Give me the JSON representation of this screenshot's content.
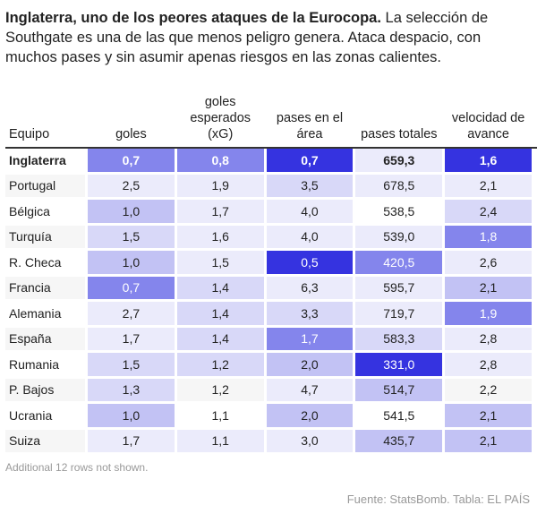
{
  "intro": {
    "title": "Inglaterra, uno de los peores ataques de la Eurocopa.",
    "text": " La selección de Southgate es una de las que menos peligro genera. Ataca despacio, con muchos pases y sin asumir apenas riesgos en las zonas calientes."
  },
  "chart_data": {
    "type": "table",
    "columns": [
      "Equipo",
      "goles",
      "goles esperados (xG)",
      "pases en el área",
      "pases totales",
      "velocidad de avance"
    ],
    "shade_colors": [
      "none",
      "#ebebfb",
      "#d8d8f8",
      "#c2c2f4",
      "#8485ec",
      "#3533e0"
    ],
    "rows": [
      {
        "team": "Inglaterra",
        "values": [
          "0,7",
          "0,8",
          "0,7",
          "659,3",
          "1,6"
        ],
        "shades": [
          4,
          4,
          5,
          1,
          5
        ],
        "highlight": true
      },
      {
        "team": "Portugal",
        "values": [
          "2,5",
          "1,9",
          "3,5",
          "678,5",
          "2,1"
        ],
        "shades": [
          1,
          1,
          2,
          1,
          1
        ]
      },
      {
        "team": "Bélgica",
        "values": [
          "1,0",
          "1,7",
          "4,0",
          "538,5",
          "2,4"
        ],
        "shades": [
          3,
          1,
          1,
          0,
          2
        ]
      },
      {
        "team": "Turquía",
        "values": [
          "1,5",
          "1,6",
          "4,0",
          "539,0",
          "1,8"
        ],
        "shades": [
          2,
          1,
          1,
          1,
          4
        ]
      },
      {
        "team": "R. Checa",
        "values": [
          "1,0",
          "1,5",
          "0,5",
          "420,5",
          "2,6"
        ],
        "shades": [
          3,
          1,
          5,
          4,
          1
        ]
      },
      {
        "team": "Francia",
        "values": [
          "0,7",
          "1,4",
          "6,3",
          "595,7",
          "2,1"
        ],
        "shades": [
          4,
          2,
          1,
          1,
          3
        ]
      },
      {
        "team": "Alemania",
        "values": [
          "2,7",
          "1,4",
          "3,3",
          "719,7",
          "1,9"
        ],
        "shades": [
          1,
          2,
          2,
          1,
          4
        ]
      },
      {
        "team": "España",
        "values": [
          "1,7",
          "1,4",
          "1,7",
          "583,3",
          "2,8"
        ],
        "shades": [
          1,
          2,
          4,
          2,
          1
        ]
      },
      {
        "team": "Rumania",
        "values": [
          "1,5",
          "1,2",
          "2,0",
          "331,0",
          "2,8"
        ],
        "shades": [
          2,
          2,
          3,
          5,
          1
        ]
      },
      {
        "team": "P. Bajos",
        "values": [
          "1,3",
          "1,2",
          "4,7",
          "514,7",
          "2,2"
        ],
        "shades": [
          2,
          0,
          1,
          3,
          0
        ]
      },
      {
        "team": "Ucrania",
        "values": [
          "1,0",
          "1,1",
          "2,0",
          "541,5",
          "2,1"
        ],
        "shades": [
          3,
          0,
          3,
          0,
          3
        ]
      },
      {
        "team": "Suiza",
        "values": [
          "1,7",
          "1,1",
          "3,0",
          "435,7",
          "2,1"
        ],
        "shades": [
          1,
          1,
          1,
          3,
          3
        ]
      }
    ]
  },
  "footnote": "Additional 12 rows not shown.",
  "source": "Fuente: StatsBomb. Tabla: EL PAÍS"
}
